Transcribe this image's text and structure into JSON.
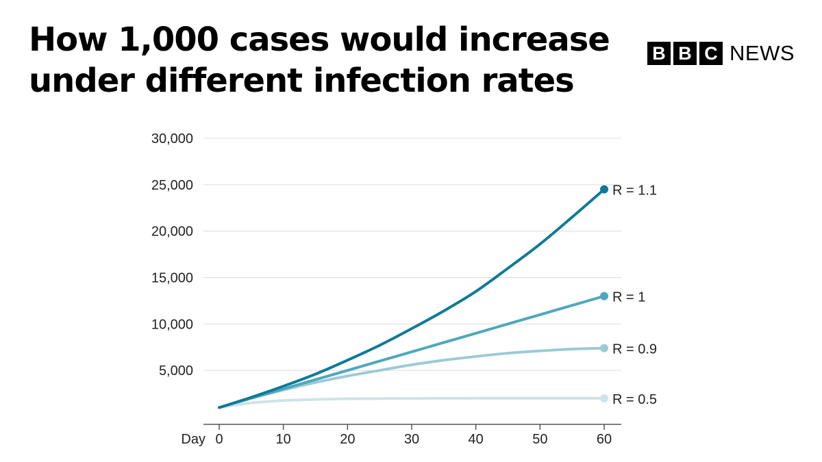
{
  "header": {
    "title": "How 1,000 cases would increase under different infection rates"
  },
  "brand": {
    "letters": [
      "B",
      "B",
      "C"
    ],
    "news": "NEWS"
  },
  "chart_data": {
    "type": "line",
    "title": "How 1,000 cases would increase under different infection rates",
    "xlabel": "Day",
    "ylabel": "",
    "xlim": [
      0,
      60
    ],
    "ylim": [
      0,
      30000
    ],
    "xticks": [
      0,
      10,
      20,
      30,
      40,
      50,
      60
    ],
    "xtick_labels": [
      "0",
      "10",
      "20",
      "30",
      "40",
      "50",
      "60"
    ],
    "yticks": [
      5000,
      10000,
      15000,
      20000,
      25000,
      30000
    ],
    "ytick_labels": [
      "5,000",
      "10,000",
      "15,000",
      "20,000",
      "25,000",
      "30,000"
    ],
    "grid": true,
    "x": [
      0,
      5,
      10,
      15,
      20,
      25,
      30,
      35,
      40,
      45,
      50,
      55,
      60
    ],
    "series": [
      {
        "name": "R = 0.5",
        "color": "#cde3ea",
        "values": [
          1000,
          1500,
          1750,
          1875,
          1940,
          1970,
          1985,
          1992,
          1996,
          1998,
          1999,
          2000,
          2000
        ]
      },
      {
        "name": "R = 0.9",
        "color": "#9ccad7",
        "values": [
          1000,
          2000,
          2900,
          3700,
          4400,
          5000,
          5600,
          6100,
          6500,
          6850,
          7100,
          7300,
          7400
        ]
      },
      {
        "name": "R = 1",
        "color": "#4ea8bd",
        "values": [
          1000,
          2000,
          3000,
          4000,
          5000,
          6000,
          7000,
          8000,
          9000,
          10000,
          11000,
          12000,
          13000
        ]
      },
      {
        "name": "R = 1.1",
        "color": "#0f7a99",
        "values": [
          1000,
          2100,
          3300,
          4600,
          6100,
          7700,
          9500,
          11400,
          13500,
          16000,
          18600,
          21500,
          24500
        ]
      }
    ]
  }
}
